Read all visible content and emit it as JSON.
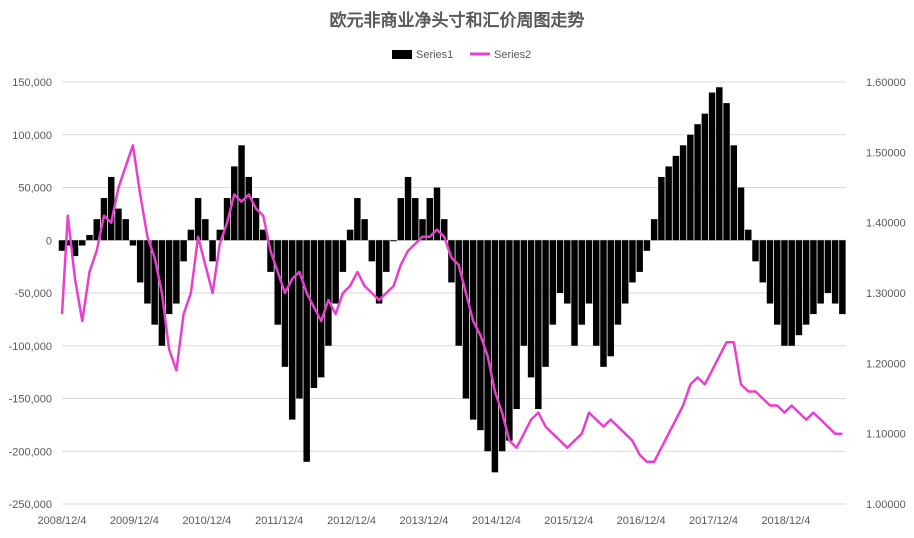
{
  "chart_data": {
    "type": "bar",
    "title": "欧元非商业净头寸和汇价周图走势",
    "legend_position": "top",
    "grid": true,
    "colors": {
      "series1": "#000000",
      "series2": "#e83fcf"
    },
    "x_tick_labels": [
      "2008/12/4",
      "2009/12/4",
      "2010/12/4",
      "2011/12/4",
      "2012/12/4",
      "2013/12/4",
      "2014/12/4",
      "2015/12/4",
      "2016/12/4",
      "2017/12/4",
      "2018/12/4"
    ],
    "y_left": {
      "lim": [
        -250000,
        150000
      ],
      "ticks": [
        150000,
        100000,
        50000,
        0,
        -50000,
        -100000,
        -150000,
        -200000,
        -250000
      ],
      "tick_labels": [
        "150,000",
        "100,000",
        "50,000",
        "0",
        "-50,000",
        "-100,000",
        "-150,000",
        "-200,000",
        "-250,000"
      ]
    },
    "y_right": {
      "lim": [
        1.0,
        1.6
      ],
      "ticks": [
        1.6,
        1.5,
        1.4,
        1.3,
        1.2,
        1.1,
        1.0
      ],
      "tick_labels": [
        "1.60000",
        "1.50000",
        "1.40000",
        "1.30000",
        "1.20000",
        "1.10000",
        "1.00000"
      ]
    },
    "x_range": [
      2008.92,
      2019.75
    ],
    "series": [
      {
        "name": "Series1",
        "type": "bar",
        "axis": "left",
        "x": [
          2008.92,
          2009.0,
          2009.1,
          2009.2,
          2009.3,
          2009.4,
          2009.5,
          2009.6,
          2009.7,
          2009.8,
          2009.9,
          2010.0,
          2010.1,
          2010.2,
          2010.3,
          2010.4,
          2010.5,
          2010.6,
          2010.7,
          2010.8,
          2010.9,
          2011.0,
          2011.1,
          2011.2,
          2011.3,
          2011.4,
          2011.5,
          2011.6,
          2011.7,
          2011.8,
          2011.9,
          2012.0,
          2012.1,
          2012.2,
          2012.3,
          2012.4,
          2012.5,
          2012.6,
          2012.7,
          2012.8,
          2012.9,
          2013.0,
          2013.1,
          2013.2,
          2013.3,
          2013.4,
          2013.5,
          2013.6,
          2013.7,
          2013.8,
          2013.9,
          2014.0,
          2014.1,
          2014.2,
          2014.3,
          2014.4,
          2014.5,
          2014.6,
          2014.7,
          2014.8,
          2014.9,
          2015.0,
          2015.1,
          2015.2,
          2015.3,
          2015.4,
          2015.5,
          2015.6,
          2015.7,
          2015.8,
          2015.9,
          2016.0,
          2016.1,
          2016.2,
          2016.3,
          2016.4,
          2016.5,
          2016.6,
          2016.7,
          2016.8,
          2016.9,
          2017.0,
          2017.1,
          2017.2,
          2017.3,
          2017.4,
          2017.5,
          2017.6,
          2017.7,
          2017.8,
          2017.9,
          2018.0,
          2018.1,
          2018.2,
          2018.3,
          2018.4,
          2018.5,
          2018.6,
          2018.7,
          2018.8,
          2018.9,
          2019.0,
          2019.1,
          2019.2,
          2019.3,
          2019.4,
          2019.5,
          2019.6,
          2019.7
        ],
        "values": [
          -10000,
          -5000,
          -15000,
          -5000,
          5000,
          20000,
          40000,
          60000,
          30000,
          20000,
          -5000,
          -40000,
          -60000,
          -80000,
          -100000,
          -70000,
          -60000,
          -20000,
          10000,
          40000,
          20000,
          -20000,
          10000,
          40000,
          70000,
          90000,
          60000,
          40000,
          10000,
          -30000,
          -80000,
          -120000,
          -170000,
          -150000,
          -210000,
          -140000,
          -130000,
          -100000,
          -60000,
          -30000,
          10000,
          40000,
          20000,
          -20000,
          -60000,
          -30000,
          0,
          40000,
          60000,
          40000,
          20000,
          40000,
          50000,
          20000,
          -40000,
          -100000,
          -150000,
          -170000,
          -180000,
          -200000,
          -220000,
          -200000,
          -190000,
          -160000,
          -100000,
          -130000,
          -160000,
          -120000,
          -80000,
          -50000,
          -60000,
          -100000,
          -80000,
          -60000,
          -100000,
          -120000,
          -110000,
          -80000,
          -60000,
          -40000,
          -30000,
          -10000,
          20000,
          60000,
          70000,
          80000,
          90000,
          100000,
          110000,
          120000,
          140000,
          145000,
          130000,
          90000,
          50000,
          10000,
          -20000,
          -40000,
          -60000,
          -80000,
          -100000,
          -100000,
          -90000,
          -80000,
          -70000,
          -60000,
          -50000,
          -60000,
          -70000
        ],
        "color": "#000000"
      },
      {
        "name": "Series2",
        "type": "line",
        "axis": "right",
        "x": [
          2008.92,
          2009.0,
          2009.1,
          2009.2,
          2009.3,
          2009.4,
          2009.5,
          2009.6,
          2009.7,
          2009.8,
          2009.9,
          2010.0,
          2010.1,
          2010.2,
          2010.3,
          2010.4,
          2010.5,
          2010.6,
          2010.7,
          2010.8,
          2010.9,
          2011.0,
          2011.1,
          2011.2,
          2011.3,
          2011.4,
          2011.5,
          2011.6,
          2011.7,
          2011.8,
          2011.9,
          2012.0,
          2012.1,
          2012.2,
          2012.3,
          2012.4,
          2012.5,
          2012.6,
          2012.7,
          2012.8,
          2012.9,
          2013.0,
          2013.1,
          2013.2,
          2013.3,
          2013.4,
          2013.5,
          2013.6,
          2013.7,
          2013.8,
          2013.9,
          2014.0,
          2014.1,
          2014.2,
          2014.3,
          2014.4,
          2014.5,
          2014.6,
          2014.7,
          2014.8,
          2014.9,
          2015.0,
          2015.1,
          2015.2,
          2015.3,
          2015.4,
          2015.5,
          2015.6,
          2015.7,
          2015.8,
          2015.9,
          2016.0,
          2016.1,
          2016.2,
          2016.3,
          2016.4,
          2016.5,
          2016.6,
          2016.7,
          2016.8,
          2016.9,
          2017.0,
          2017.1,
          2017.2,
          2017.3,
          2017.4,
          2017.5,
          2017.6,
          2017.7,
          2017.8,
          2017.9,
          2018.0,
          2018.1,
          2018.2,
          2018.3,
          2018.4,
          2018.5,
          2018.6,
          2018.7,
          2018.8,
          2018.9,
          2019.0,
          2019.1,
          2019.2,
          2019.3,
          2019.4,
          2019.5,
          2019.6,
          2019.7
        ],
        "values": [
          1.27,
          1.41,
          1.32,
          1.26,
          1.33,
          1.36,
          1.41,
          1.4,
          1.45,
          1.48,
          1.51,
          1.44,
          1.38,
          1.35,
          1.3,
          1.22,
          1.19,
          1.27,
          1.3,
          1.38,
          1.34,
          1.3,
          1.37,
          1.4,
          1.44,
          1.43,
          1.44,
          1.42,
          1.41,
          1.36,
          1.33,
          1.3,
          1.32,
          1.33,
          1.3,
          1.28,
          1.26,
          1.29,
          1.27,
          1.3,
          1.31,
          1.33,
          1.31,
          1.3,
          1.29,
          1.3,
          1.31,
          1.34,
          1.36,
          1.37,
          1.38,
          1.38,
          1.39,
          1.38,
          1.35,
          1.34,
          1.3,
          1.26,
          1.24,
          1.21,
          1.16,
          1.13,
          1.09,
          1.08,
          1.1,
          1.12,
          1.13,
          1.11,
          1.1,
          1.09,
          1.08,
          1.09,
          1.1,
          1.13,
          1.12,
          1.11,
          1.12,
          1.11,
          1.1,
          1.09,
          1.07,
          1.06,
          1.06,
          1.08,
          1.1,
          1.12,
          1.14,
          1.17,
          1.18,
          1.17,
          1.19,
          1.21,
          1.23,
          1.23,
          1.17,
          1.16,
          1.16,
          1.15,
          1.14,
          1.14,
          1.13,
          1.14,
          1.13,
          1.12,
          1.13,
          1.12,
          1.11,
          1.1,
          1.1
        ],
        "color": "#e83fcf"
      }
    ]
  }
}
